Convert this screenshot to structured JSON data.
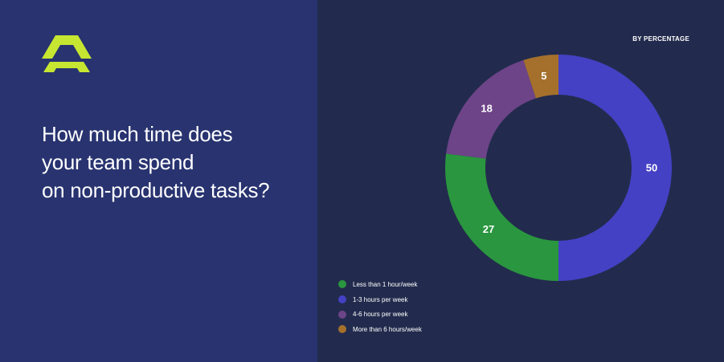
{
  "headline": {
    "lines": [
      "How much time does",
      "your team spend",
      "on non-productive tasks?"
    ]
  },
  "chart_data": {
    "type": "pie",
    "subtitle": "BY PERCENTAGE",
    "donut": true,
    "categories": [
      "Less than 1 hour/week",
      "1-3 hours per week",
      "4-6 hours per week",
      "More than 6 hours/week"
    ],
    "values": [
      27,
      50,
      18,
      5
    ],
    "colors": [
      "#2a963f",
      "#4441c4",
      "#6d4488",
      "#a5702c"
    ],
    "legend_position": "bottom-left"
  },
  "colors": {
    "left_background": "#283370",
    "right_background": "#222b4d",
    "logo": "#c6e631"
  }
}
